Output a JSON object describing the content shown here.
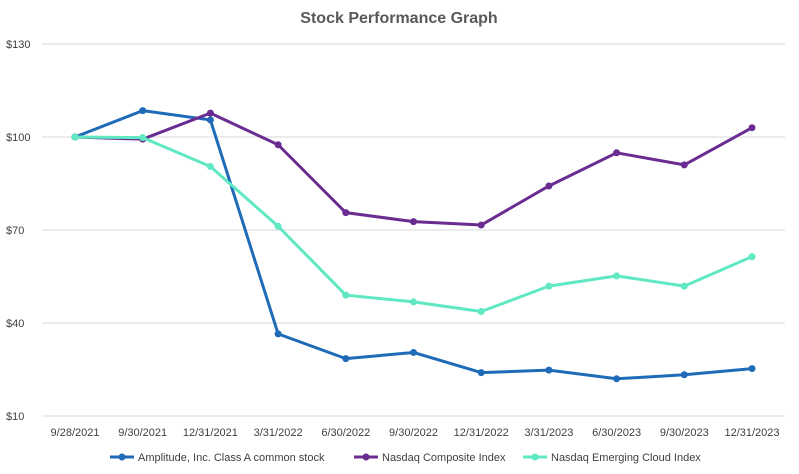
{
  "chart_data": {
    "type": "line",
    "title": "Stock Performance Graph",
    "xlabel": "",
    "ylabel": "",
    "categories": [
      "9/28/2021",
      "9/30/2021",
      "12/31/2021",
      "3/31/2022",
      "6/30/2022",
      "9/30/2022",
      "12/31/2022",
      "3/31/2023",
      "6/30/2023",
      "9/30/2023",
      "12/31/2023"
    ],
    "y_ticks": [
      10,
      40,
      70,
      100,
      130
    ],
    "y_tick_labels": [
      "$10",
      "$40",
      "$70",
      "$100",
      "$130"
    ],
    "ylim": [
      10,
      130
    ],
    "grid": true,
    "legend_position": "bottom",
    "series": [
      {
        "name": "Amplitude, Inc. Class A common stock",
        "color": "#1f6bb8",
        "values": [
          100,
          108.5,
          105.5,
          36.5,
          28.5,
          30.5,
          24,
          24.8,
          22,
          23.3,
          25.3
        ]
      },
      {
        "name": "Nasdaq Composite Index",
        "color": "#6a2c91",
        "values": [
          100,
          99.3,
          107.7,
          97.5,
          75.6,
          72.7,
          71.6,
          84.2,
          94.9,
          91,
          103
        ]
      },
      {
        "name": "Nasdaq Emerging Cloud Index",
        "color": "#5fe8c2",
        "values": [
          100,
          99.8,
          90.5,
          71.2,
          49,
          46.8,
          43.7,
          51.9,
          55.2,
          51.9,
          61.4
        ]
      }
    ]
  }
}
